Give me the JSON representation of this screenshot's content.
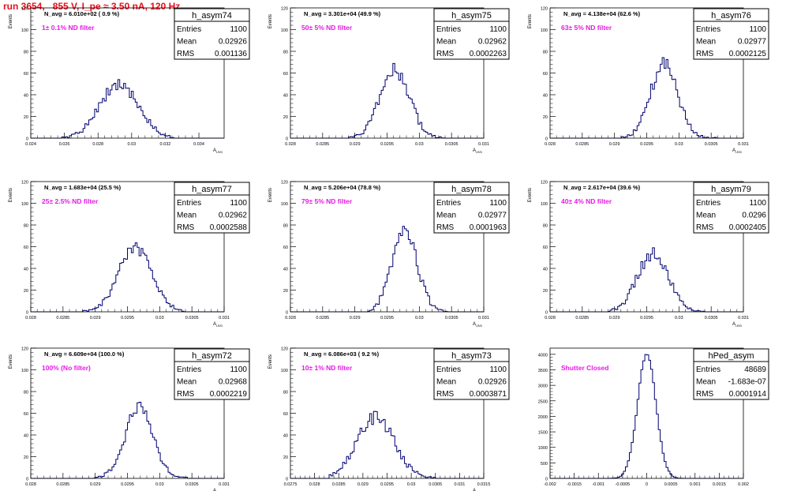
{
  "page": {
    "title": "run 3654,   855 V, I_pe ≈ 3.50 nA, 120 Hz",
    "text_color": "#e8101c",
    "line_color": "#00006e",
    "label_color": "#e619e6"
  },
  "chart_data": [
    {
      "type": "histogram",
      "stats_name": "h_asym74",
      "navg": "N_avg = 6.010e+02 ( 0.9 %)",
      "filter": "1± 0.1% ND filter",
      "entries": "1100",
      "mean": "0.02926",
      "rms": "0.001136",
      "ylabel": "Events",
      "xlabel": "A",
      "xlim": [
        0.024,
        0.0355
      ],
      "ylim": [
        0,
        120
      ],
      "xticks": [
        0.024,
        0.026,
        0.028,
        0.03,
        0.032,
        0.034
      ],
      "xtick_labels": [
        "0.024",
        "0.026",
        "0.028",
        "0.03",
        "0.032",
        "0.034"
      ],
      "yticks": [
        0,
        20,
        40,
        60,
        80,
        100,
        120
      ],
      "ytick_labels": [
        "0",
        "20",
        "40",
        "60",
        "80",
        "100",
        "120"
      ],
      "center": 0.02926,
      "sigma": 0.001136,
      "peak": 50,
      "range": [
        0.0258,
        0.0325
      ],
      "nbins": 100,
      "seed": 74
    },
    {
      "type": "histogram",
      "stats_name": "h_asym75",
      "navg": "N_avg = 3.301e+04 (49.9 %)",
      "filter": "50± 5% ND filter",
      "entries": "1100",
      "mean": "0.02962",
      "rms": "0.0002263",
      "ylabel": "Events",
      "xlabel": "A",
      "xlim": [
        0.028,
        0.031
      ],
      "ylim": [
        0,
        120
      ],
      "xticks": [
        0.028,
        0.0285,
        0.029,
        0.0295,
        0.03,
        0.0305,
        0.031
      ],
      "xtick_labels": [
        "0.028",
        "0.0285",
        "0.029",
        "0.0295",
        "0.03",
        "0.0305",
        "0.031"
      ],
      "yticks": [
        0,
        20,
        40,
        60,
        80,
        100,
        120
      ],
      "ytick_labels": [
        "0",
        "20",
        "40",
        "60",
        "80",
        "100",
        "120"
      ],
      "center": 0.02962,
      "sigma": 0.0002263,
      "peak": 63,
      "range": [
        0.0289,
        0.0304
      ],
      "nbins": 100,
      "seed": 75
    },
    {
      "type": "histogram",
      "stats_name": "h_asym76",
      "navg": "N_avg = 4.138e+04 (62.6 %)",
      "filter": "63± 5% ND filter",
      "entries": "1100",
      "mean": "0.02977",
      "rms": "0.0002125",
      "ylabel": "Events",
      "xlabel": "A",
      "xlim": [
        0.028,
        0.031
      ],
      "ylim": [
        0,
        120
      ],
      "xticks": [
        0.028,
        0.0285,
        0.029,
        0.0295,
        0.03,
        0.0305,
        0.031
      ],
      "xtick_labels": [
        "0.028",
        "0.0285",
        "0.029",
        "0.0295",
        "0.03",
        "0.0305",
        "0.031"
      ],
      "yticks": [
        0,
        20,
        40,
        60,
        80,
        100,
        120
      ],
      "ytick_labels": [
        "0",
        "20",
        "40",
        "60",
        "80",
        "100",
        "120"
      ],
      "center": 0.02977,
      "sigma": 0.0002125,
      "peak": 68,
      "range": [
        0.0291,
        0.0306
      ],
      "nbins": 100,
      "seed": 76
    },
    {
      "type": "histogram",
      "stats_name": "h_asym77",
      "navg": "N_avg = 1.683e+04 (25.5 %)",
      "filter": "25± 2.5% ND filter",
      "entries": "1100",
      "mean": "0.02962",
      "rms": "0.0002588",
      "ylabel": "Events",
      "xlabel": "A",
      "xlim": [
        0.028,
        0.031
      ],
      "ylim": [
        0,
        120
      ],
      "xticks": [
        0.028,
        0.0285,
        0.029,
        0.0295,
        0.03,
        0.0305,
        0.031
      ],
      "xtick_labels": [
        "0.028",
        "0.0285",
        "0.029",
        "0.0295",
        "0.03",
        "0.0305",
        "0.031"
      ],
      "yticks": [
        0,
        20,
        40,
        60,
        80,
        100,
        120
      ],
      "ytick_labels": [
        "0",
        "20",
        "40",
        "60",
        "80",
        "100",
        "120"
      ],
      "center": 0.02962,
      "sigma": 0.0002588,
      "peak": 58,
      "range": [
        0.0288,
        0.0304
      ],
      "nbins": 100,
      "seed": 77
    },
    {
      "type": "histogram",
      "stats_name": "h_asym78",
      "navg": "N_avg = 5.206e+04 (78.8 %)",
      "filter": "79± 5% ND filter",
      "entries": "1100",
      "mean": "0.02977",
      "rms": "0.0001963",
      "ylabel": "Events",
      "xlabel": "A",
      "xlim": [
        0.028,
        0.031
      ],
      "ylim": [
        0,
        120
      ],
      "xticks": [
        0.028,
        0.0285,
        0.029,
        0.0295,
        0.03,
        0.0305,
        0.031
      ],
      "xtick_labels": [
        "0.028",
        "0.0285",
        "0.029",
        "0.0295",
        "0.03",
        "0.0305",
        "0.031"
      ],
      "yticks": [
        0,
        20,
        40,
        60,
        80,
        100,
        120
      ],
      "ytick_labels": [
        "0",
        "20",
        "40",
        "60",
        "80",
        "100",
        "120"
      ],
      "center": 0.02977,
      "sigma": 0.0001963,
      "peak": 74,
      "range": [
        0.0292,
        0.0305
      ],
      "nbins": 100,
      "seed": 78
    },
    {
      "type": "histogram",
      "stats_name": "h_asym79",
      "navg": "N_avg = 2.617e+04 (39.6 %)",
      "filter": "40± 4% ND filter",
      "entries": "1100",
      "mean": "0.0296",
      "rms": "0.0002405",
      "ylabel": "Events",
      "xlabel": "A",
      "xlim": [
        0.028,
        0.031
      ],
      "ylim": [
        0,
        120
      ],
      "xticks": [
        0.028,
        0.0285,
        0.029,
        0.0295,
        0.03,
        0.0305,
        0.031
      ],
      "xtick_labels": [
        "0.028",
        "0.0285",
        "0.029",
        "0.0295",
        "0.03",
        "0.0305",
        "0.031"
      ],
      "yticks": [
        0,
        20,
        40,
        60,
        80,
        100,
        120
      ],
      "ytick_labels": [
        "0",
        "20",
        "40",
        "60",
        "80",
        "100",
        "120"
      ],
      "center": 0.0296,
      "sigma": 0.0002405,
      "peak": 54,
      "range": [
        0.0289,
        0.0304
      ],
      "nbins": 100,
      "seed": 79
    },
    {
      "type": "histogram",
      "stats_name": "h_asym72",
      "navg": "N_avg = 6.609e+04 (100.0 %)",
      "filter": "100% (No filter)",
      "entries": "1100",
      "mean": "0.02968",
      "rms": "0.0002219",
      "ylabel": "Events",
      "xlabel": "A",
      "xlim": [
        0.028,
        0.031
      ],
      "ylim": [
        0,
        120
      ],
      "xticks": [
        0.028,
        0.0285,
        0.029,
        0.0295,
        0.03,
        0.0305,
        0.031
      ],
      "xtick_labels": [
        "0.028",
        "0.0285",
        "0.029",
        "0.0295",
        "0.03",
        "0.0305",
        "0.031"
      ],
      "yticks": [
        0,
        20,
        40,
        60,
        80,
        100,
        120
      ],
      "ytick_labels": [
        "0",
        "20",
        "40",
        "60",
        "80",
        "100",
        "120"
      ],
      "center": 0.02968,
      "sigma": 0.0002219,
      "peak": 64,
      "range": [
        0.029,
        0.0305
      ],
      "nbins": 100,
      "seed": 72
    },
    {
      "type": "histogram",
      "stats_name": "h_asym73",
      "navg": "N_avg = 6.086e+03 ( 9.2 %)",
      "filter": "10± 1% ND filter",
      "entries": "1100",
      "mean": "0.02926",
      "rms": "0.0003871",
      "ylabel": "Events",
      "xlabel": "A",
      "xlim": [
        0.0275,
        0.0315
      ],
      "ylim": [
        0,
        120
      ],
      "xticks": [
        0.0275,
        0.028,
        0.0285,
        0.029,
        0.0295,
        0.03,
        0.0305,
        0.031,
        0.0315
      ],
      "xtick_labels": [
        "0.0275",
        "0.028",
        "0.0285",
        "0.029",
        "0.0295",
        "0.03",
        "0.0305",
        "0.031",
        "0.0315"
      ],
      "yticks": [
        0,
        20,
        40,
        60,
        80,
        100,
        120
      ],
      "ytick_labels": [
        "0",
        "20",
        "40",
        "60",
        "80",
        "100",
        "120"
      ],
      "center": 0.02926,
      "sigma": 0.0003871,
      "peak": 56,
      "range": [
        0.0283,
        0.0305
      ],
      "nbins": 100,
      "seed": 73
    },
    {
      "type": "histogram",
      "stats_name": "hPed_asym",
      "navg": "",
      "filter": "Shutter Closed",
      "entries": "48689",
      "mean": "-1.683e-07",
      "rms": "0.0001914",
      "ylabel": "",
      "xlabel": "",
      "xlim": [
        -0.002,
        0.002
      ],
      "ylim": [
        0,
        4200
      ],
      "xticks": [
        -0.002,
        -0.0015,
        -0.001,
        -0.0005,
        0,
        0.0005,
        0.001,
        0.0015,
        0.002
      ],
      "xtick_labels": [
        "-0.002",
        "-0.0015",
        "-0.001",
        "-0.0005",
        "0",
        "0.0005",
        "0.001",
        "0.0015",
        "0.002"
      ],
      "yticks": [
        0,
        500,
        1000,
        1500,
        2000,
        2500,
        3000,
        3500,
        4000
      ],
      "ytick_labels": [
        "0",
        "500",
        "1000",
        "1500",
        "2000",
        "2500",
        "3000",
        "3500",
        "4000"
      ],
      "center": 0,
      "sigma": 0.0001914,
      "peak": 3980,
      "range": [
        -0.0009,
        0.0009
      ],
      "nbins": 100,
      "seed": 1
    }
  ]
}
